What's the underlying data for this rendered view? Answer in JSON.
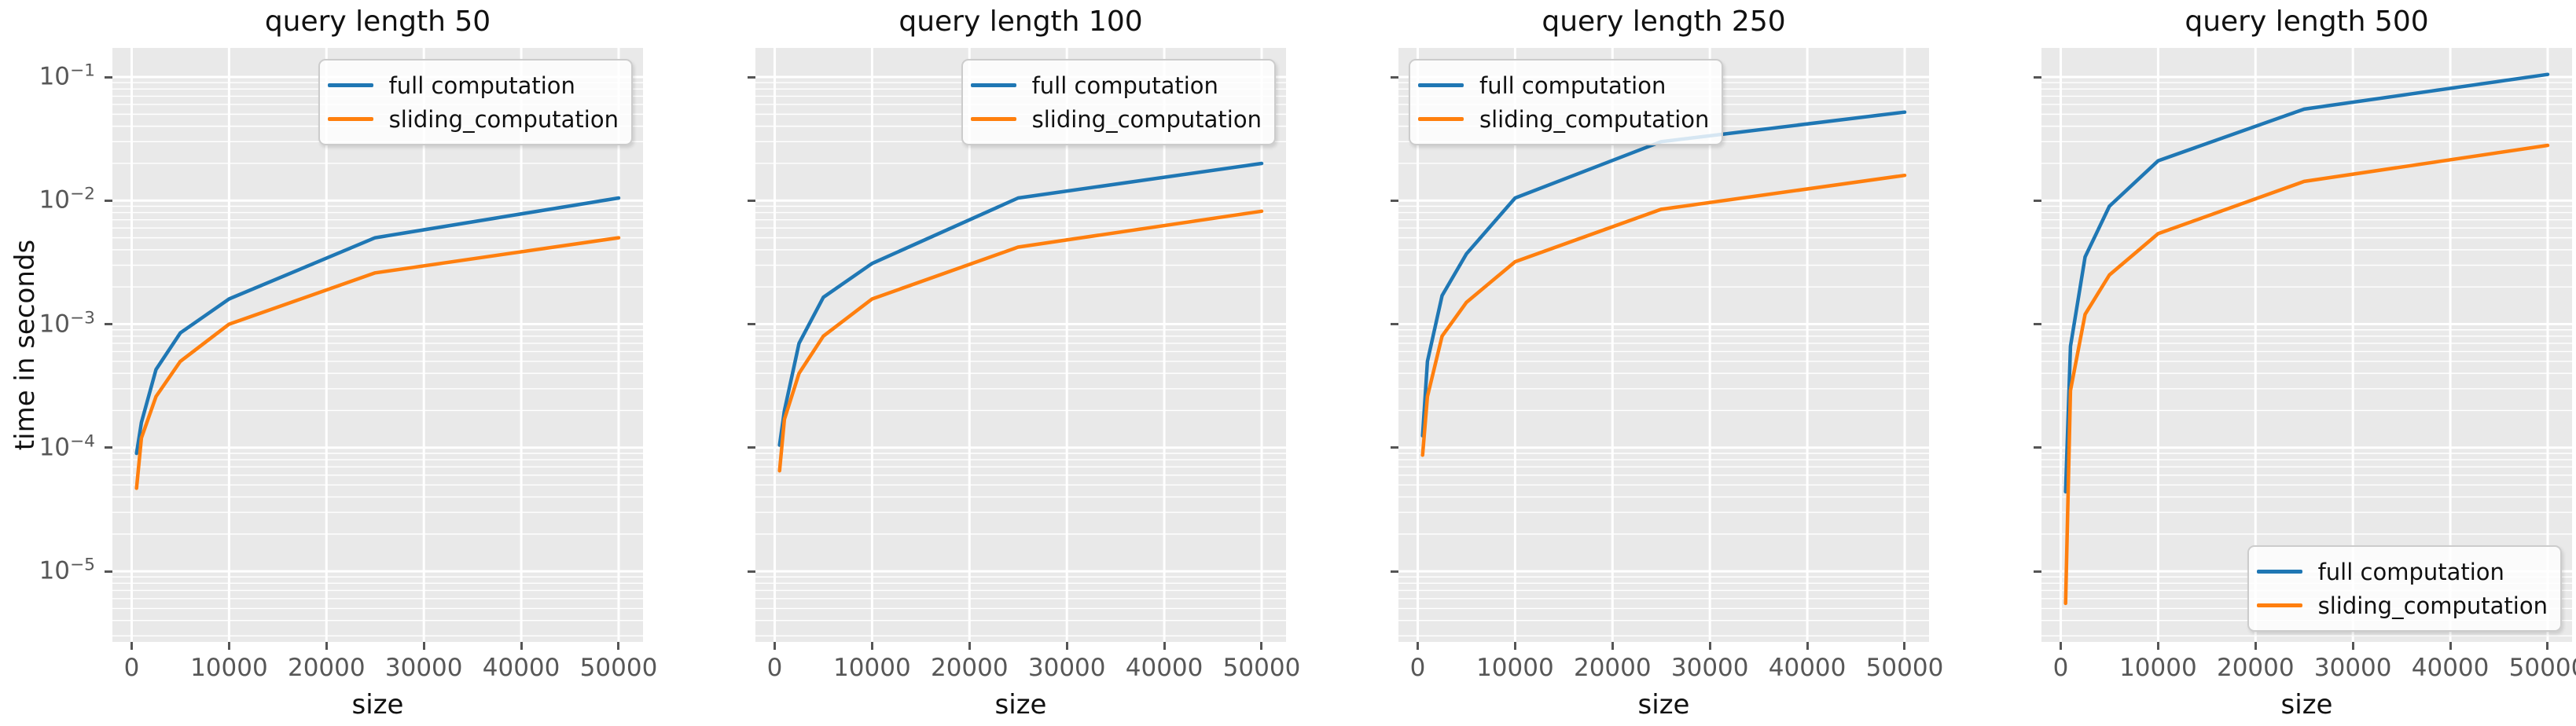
{
  "figure": {
    "background": "#ffffff",
    "axes_background": "#e9e9e9",
    "grid_color": "#ffffff",
    "tick_label_color": "#575757",
    "text_color": "#111111",
    "series_palette": [
      "#1f77b4",
      "#ff7f0e"
    ]
  },
  "shared": {
    "ylabel": "time in seconds",
    "xlabel": "size",
    "yscale": "log",
    "xlim": [
      -1977,
      52503
    ],
    "ylim": [
      2.68e-06,
      0.172
    ],
    "yticks": [
      {
        "base": "10",
        "exp": "−1",
        "value": 0.1
      },
      {
        "base": "10",
        "exp": "−2",
        "value": 0.01
      },
      {
        "base": "10",
        "exp": "−3",
        "value": 0.001
      },
      {
        "base": "10",
        "exp": "−4",
        "value": 0.0001
      },
      {
        "base": "10",
        "exp": "−5",
        "value": 1e-05
      }
    ],
    "xticks": [
      {
        "label": "0",
        "value": 0
      },
      {
        "label": "10000",
        "value": 10000
      },
      {
        "label": "20000",
        "value": 20000
      },
      {
        "label": "30000",
        "value": 30000
      },
      {
        "label": "40000",
        "value": 40000
      },
      {
        "label": "50000",
        "value": 50000
      }
    ]
  },
  "chart_data": [
    {
      "type": "line",
      "title": "query length 50",
      "xlabel": "size",
      "ylabel": "time in seconds",
      "legend_position": "upper-right",
      "show_ytick_labels": true,
      "x": [
        500,
        1000,
        2500,
        5000,
        10000,
        25000,
        50000
      ],
      "series": [
        {
          "name": "full computation",
          "color": "#1f77b4",
          "values": [
            9e-05,
            0.00016,
            0.00043,
            0.00085,
            0.0016,
            0.005,
            0.0105
          ]
        },
        {
          "name": "sliding_computation",
          "color": "#ff7f0e",
          "values": [
            4.7e-05,
            0.00012,
            0.00026,
            0.0005,
            0.001,
            0.0026,
            0.005
          ]
        }
      ]
    },
    {
      "type": "line",
      "title": "query length 100",
      "xlabel": "size",
      "ylabel": "time in seconds",
      "legend_position": "upper-right",
      "show_ytick_labels": false,
      "x": [
        500,
        1000,
        2500,
        5000,
        10000,
        25000,
        50000
      ],
      "series": [
        {
          "name": "full computation",
          "color": "#1f77b4",
          "values": [
            0.000105,
            0.0002,
            0.0007,
            0.00165,
            0.0031,
            0.0105,
            0.02
          ]
        },
        {
          "name": "sliding_computation",
          "color": "#ff7f0e",
          "values": [
            6.5e-05,
            0.00017,
            0.0004,
            0.0008,
            0.0016,
            0.0042,
            0.0082
          ]
        }
      ]
    },
    {
      "type": "line",
      "title": "query length 250",
      "xlabel": "size",
      "ylabel": "time in seconds",
      "legend_position": "upper-left",
      "show_ytick_labels": false,
      "x": [
        500,
        1000,
        2500,
        5000,
        10000,
        25000,
        50000
      ],
      "series": [
        {
          "name": "full computation",
          "color": "#1f77b4",
          "values": [
            0.000125,
            0.0005,
            0.0017,
            0.0037,
            0.0105,
            0.03,
            0.052
          ]
        },
        {
          "name": "sliding_computation",
          "color": "#ff7f0e",
          "values": [
            8.7e-05,
            0.00026,
            0.0008,
            0.0015,
            0.0032,
            0.0085,
            0.016
          ]
        }
      ]
    },
    {
      "type": "line",
      "title": "query length 500",
      "xlabel": "size",
      "ylabel": "time in seconds",
      "legend_position": "lower-right",
      "show_ytick_labels": false,
      "x": [
        500,
        1000,
        2500,
        5000,
        10000,
        25000,
        50000
      ],
      "series": [
        {
          "name": "full computation",
          "color": "#1f77b4",
          "values": [
            4.4e-05,
            0.00066,
            0.0035,
            0.009,
            0.021,
            0.055,
            0.105
          ]
        },
        {
          "name": "sliding_computation",
          "color": "#ff7f0e",
          "values": [
            5.5e-06,
            0.00029,
            0.0012,
            0.0025,
            0.0054,
            0.0143,
            0.028
          ]
        }
      ]
    }
  ]
}
